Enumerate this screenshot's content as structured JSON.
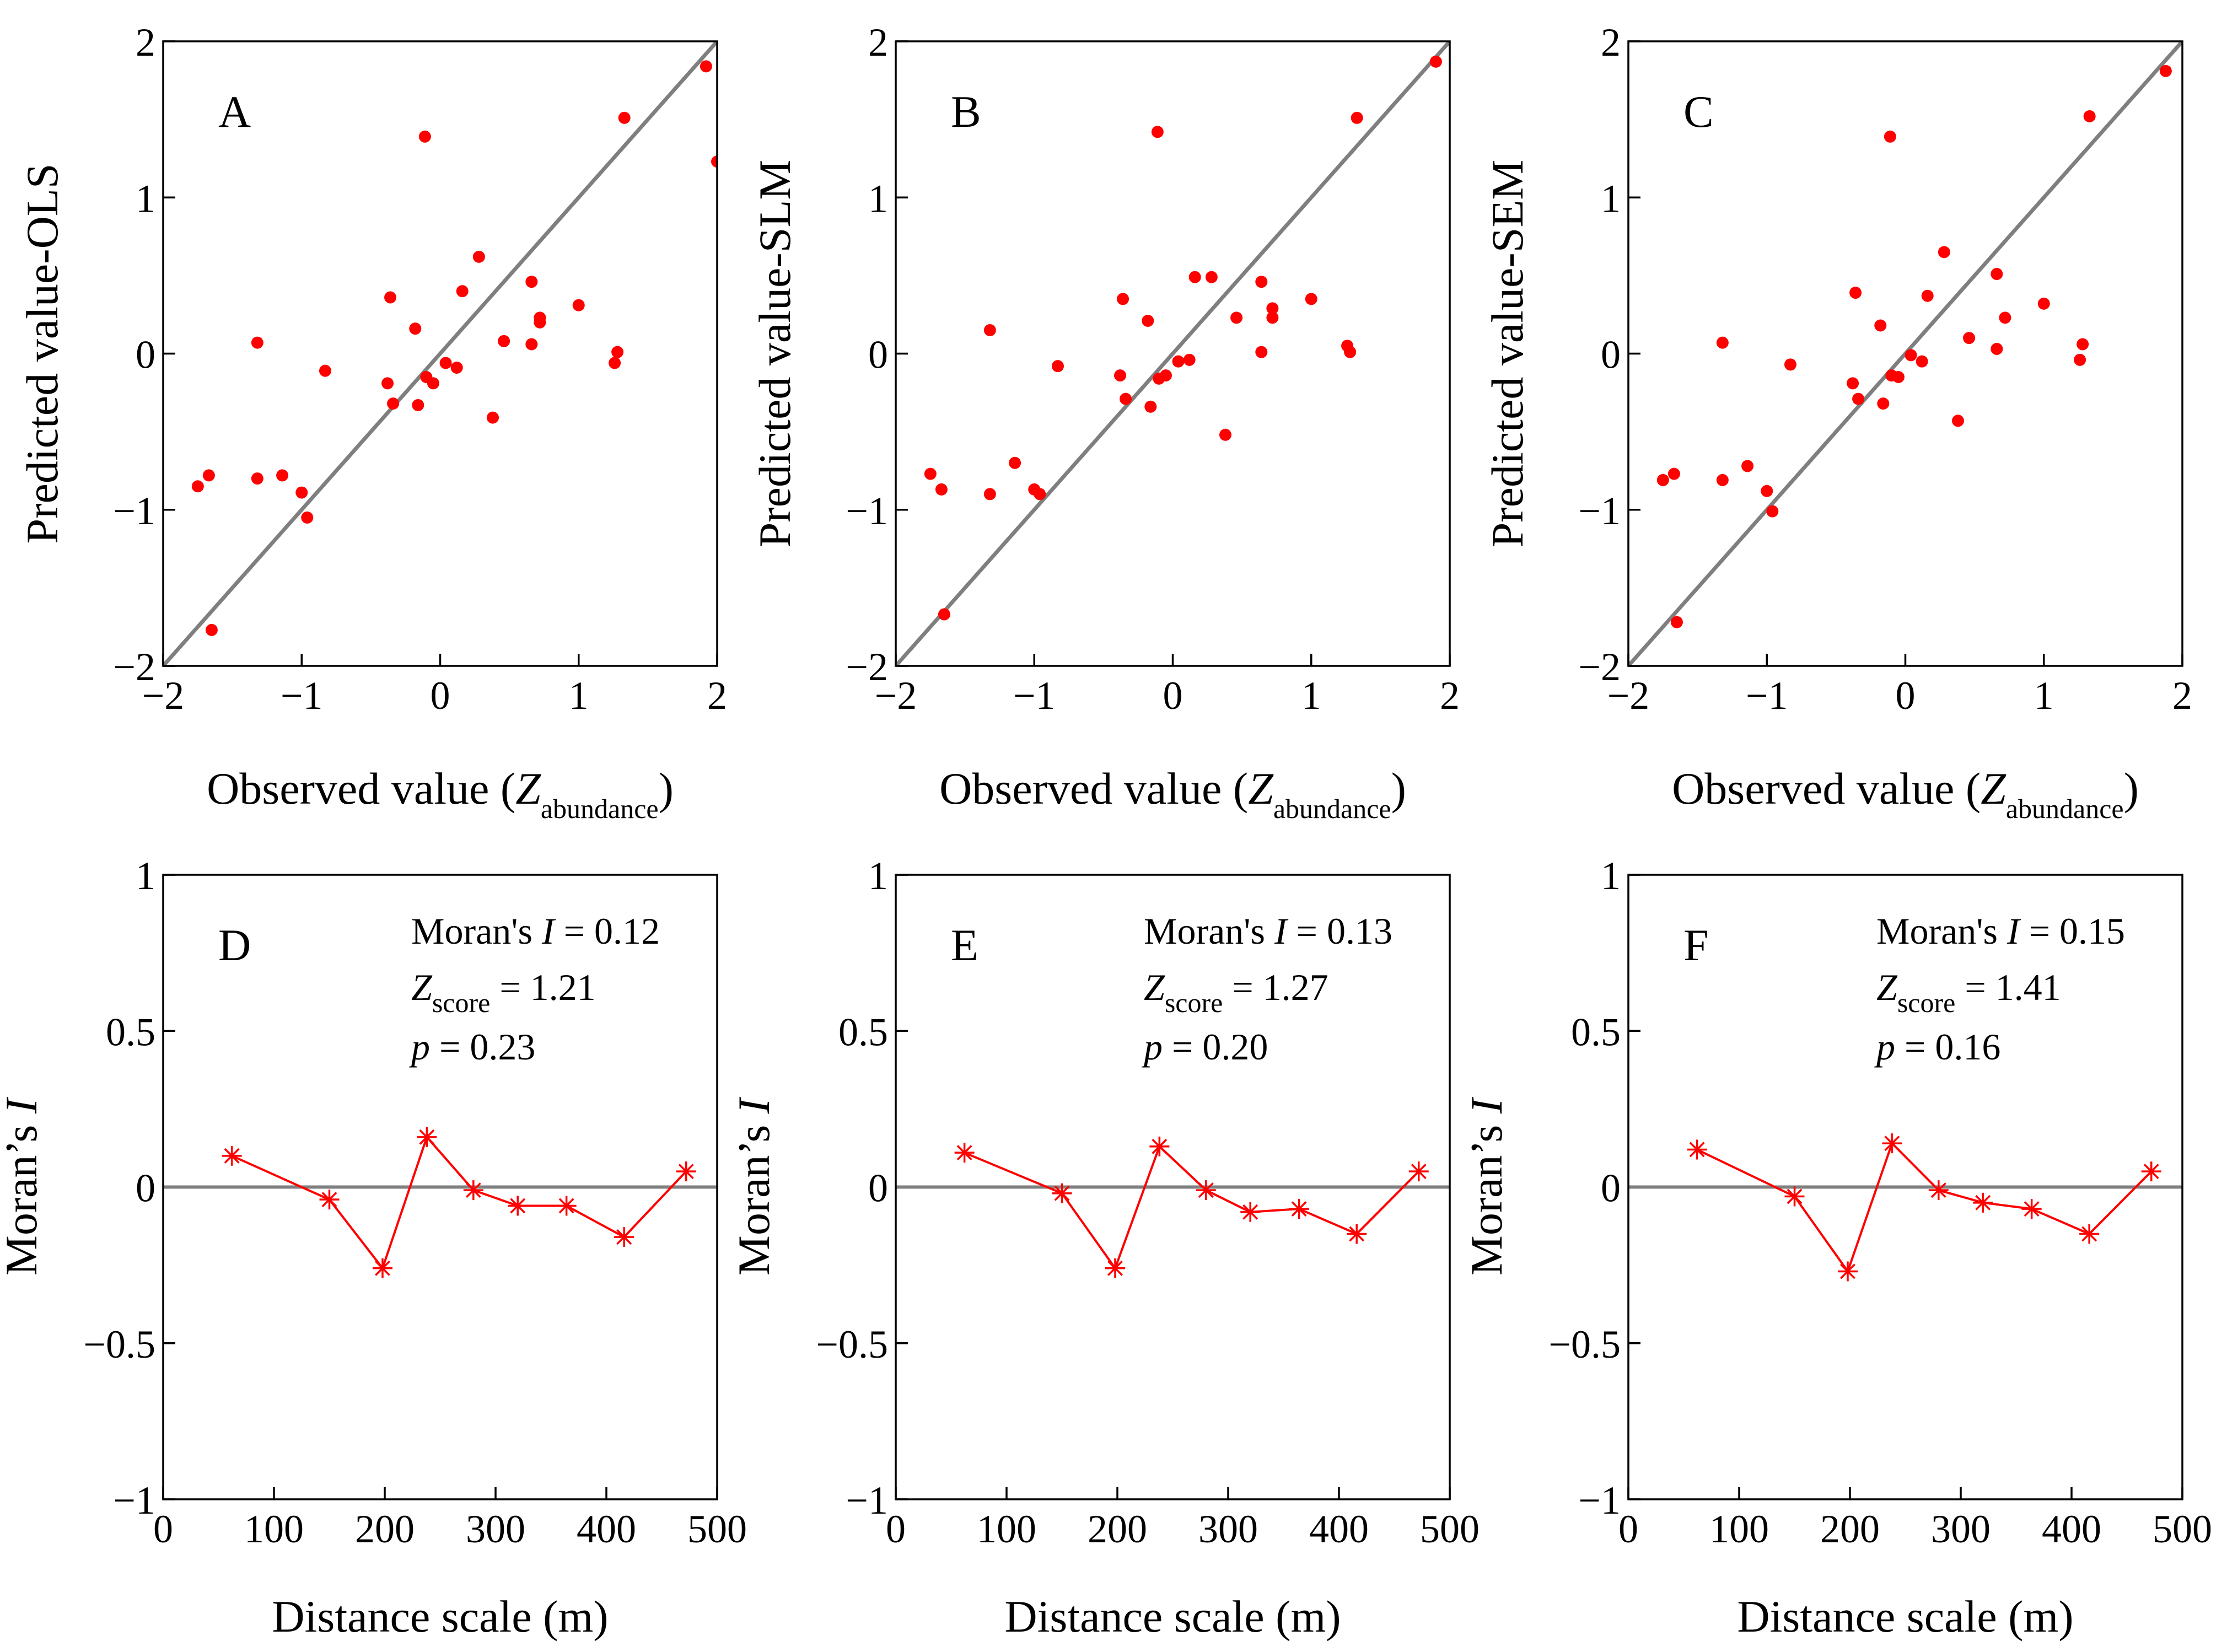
{
  "chart_data": [
    {
      "id": "A",
      "type": "scatter",
      "panel_letter": "A",
      "ylabel": "Predicted value-OLS",
      "xlabel_main": "Observed value (",
      "xlabel_italic": "Z",
      "xlabel_sub": "abundance",
      "xlabel_close": ")",
      "xlim": [
        -2,
        2
      ],
      "ylim": [
        -2,
        2
      ],
      "xticks": [
        {
          "v": -2,
          "label": "−2"
        },
        {
          "v": -1,
          "label": "−1"
        },
        {
          "v": 0,
          "label": "0"
        },
        {
          "v": 1,
          "label": "1"
        },
        {
          "v": 2,
          "label": "2"
        }
      ],
      "yticks": [
        {
          "v": -2,
          "label": "−2"
        },
        {
          "v": -1,
          "label": "−1"
        },
        {
          "v": 0,
          "label": "0"
        },
        {
          "v": 1,
          "label": "1"
        },
        {
          "v": 2,
          "label": "2"
        }
      ],
      "reference_line": "1:1",
      "points": [
        {
          "x": -1.75,
          "y": -0.85
        },
        {
          "x": -1.67,
          "y": -0.78
        },
        {
          "x": -1.65,
          "y": -1.77
        },
        {
          "x": -1.32,
          "y": 0.07
        },
        {
          "x": -1.32,
          "y": -0.8
        },
        {
          "x": -1.14,
          "y": -0.78
        },
        {
          "x": -1.0,
          "y": -0.89
        },
        {
          "x": -0.96,
          "y": -1.05
        },
        {
          "x": -0.83,
          "y": -0.11
        },
        {
          "x": -0.38,
          "y": -0.19
        },
        {
          "x": -0.36,
          "y": 0.36
        },
        {
          "x": -0.34,
          "y": -0.32
        },
        {
          "x": -0.18,
          "y": 0.16
        },
        {
          "x": -0.16,
          "y": -0.33
        },
        {
          "x": -0.11,
          "y": 1.39
        },
        {
          "x": -0.1,
          "y": -0.15
        },
        {
          "x": -0.05,
          "y": -0.19
        },
        {
          "x": 0.04,
          "y": -0.06
        },
        {
          "x": 0.12,
          "y": -0.09
        },
        {
          "x": 0.16,
          "y": 0.4
        },
        {
          "x": 0.28,
          "y": 0.62
        },
        {
          "x": 0.38,
          "y": -0.41
        },
        {
          "x": 0.46,
          "y": 0.08
        },
        {
          "x": 0.66,
          "y": 0.46
        },
        {
          "x": 0.66,
          "y": 0.06
        },
        {
          "x": 0.72,
          "y": 0.23
        },
        {
          "x": 0.72,
          "y": 0.2
        },
        {
          "x": 1.0,
          "y": 0.31
        },
        {
          "x": 1.26,
          "y": -0.06
        },
        {
          "x": 1.28,
          "y": 0.01
        },
        {
          "x": 1.33,
          "y": 1.51
        },
        {
          "x": 1.92,
          "y": 1.84
        },
        {
          "x": 2.0,
          "y": 1.23
        }
      ]
    },
    {
      "id": "B",
      "type": "scatter",
      "panel_letter": "B",
      "ylabel": "Predicted value-SLM",
      "xlabel_main": "Observed value (",
      "xlabel_italic": "Z",
      "xlabel_sub": "abundance",
      "xlabel_close": ")",
      "xlim": [
        -2,
        2
      ],
      "ylim": [
        -2,
        2
      ],
      "xticks": [
        {
          "v": -2,
          "label": "−2"
        },
        {
          "v": -1,
          "label": "−1"
        },
        {
          "v": 0,
          "label": "0"
        },
        {
          "v": 1,
          "label": "1"
        },
        {
          "v": 2,
          "label": "2"
        }
      ],
      "yticks": [
        {
          "v": -2,
          "label": "−2"
        },
        {
          "v": -1,
          "label": "−1"
        },
        {
          "v": 0,
          "label": "0"
        },
        {
          "v": 1,
          "label": "1"
        },
        {
          "v": 2,
          "label": "2"
        }
      ],
      "reference_line": "1:1",
      "points": [
        {
          "x": -1.75,
          "y": -0.77
        },
        {
          "x": -1.67,
          "y": -0.87
        },
        {
          "x": -1.65,
          "y": -1.67
        },
        {
          "x": -1.32,
          "y": 0.15
        },
        {
          "x": -1.32,
          "y": -0.9
        },
        {
          "x": -1.14,
          "y": -0.7
        },
        {
          "x": -1.0,
          "y": -0.87
        },
        {
          "x": -0.96,
          "y": -0.9
        },
        {
          "x": -0.83,
          "y": -0.08
        },
        {
          "x": -0.38,
          "y": -0.14
        },
        {
          "x": -0.36,
          "y": 0.35
        },
        {
          "x": -0.34,
          "y": -0.29
        },
        {
          "x": -0.18,
          "y": 0.21
        },
        {
          "x": -0.16,
          "y": -0.34
        },
        {
          "x": -0.11,
          "y": 1.42
        },
        {
          "x": -0.1,
          "y": -0.16
        },
        {
          "x": -0.05,
          "y": -0.14
        },
        {
          "x": 0.04,
          "y": -0.05
        },
        {
          "x": 0.12,
          "y": -0.04
        },
        {
          "x": 0.16,
          "y": 0.49
        },
        {
          "x": 0.28,
          "y": 0.49
        },
        {
          "x": 0.38,
          "y": -0.52
        },
        {
          "x": 0.46,
          "y": 0.23
        },
        {
          "x": 0.64,
          "y": 0.46
        },
        {
          "x": 0.64,
          "y": 0.01
        },
        {
          "x": 0.72,
          "y": 0.29
        },
        {
          "x": 0.72,
          "y": 0.23
        },
        {
          "x": 1.0,
          "y": 0.35
        },
        {
          "x": 1.26,
          "y": 0.05
        },
        {
          "x": 1.28,
          "y": 0.01
        },
        {
          "x": 1.33,
          "y": 1.51
        },
        {
          "x": 1.9,
          "y": 1.87
        }
      ]
    },
    {
      "id": "C",
      "type": "scatter",
      "panel_letter": "C",
      "ylabel": "Predicted value-SEM",
      "xlabel_main": "Observed value (",
      "xlabel_italic": "Z",
      "xlabel_sub": "abundance",
      "xlabel_close": ")",
      "xlim": [
        -2,
        2
      ],
      "ylim": [
        -2,
        2
      ],
      "xticks": [
        {
          "v": -2,
          "label": "−2"
        },
        {
          "v": -1,
          "label": "−1"
        },
        {
          "v": 0,
          "label": "0"
        },
        {
          "v": 1,
          "label": "1"
        },
        {
          "v": 2,
          "label": "2"
        }
      ],
      "yticks": [
        {
          "v": -2,
          "label": "−2"
        },
        {
          "v": -1,
          "label": "−1"
        },
        {
          "v": 0,
          "label": "0"
        },
        {
          "v": 1,
          "label": "1"
        },
        {
          "v": 2,
          "label": "2"
        }
      ],
      "reference_line": "1:1",
      "points": [
        {
          "x": -1.75,
          "y": -0.81
        },
        {
          "x": -1.67,
          "y": -0.77
        },
        {
          "x": -1.65,
          "y": -1.72
        },
        {
          "x": -1.32,
          "y": 0.07
        },
        {
          "x": -1.32,
          "y": -0.81
        },
        {
          "x": -1.14,
          "y": -0.72
        },
        {
          "x": -1.0,
          "y": -0.88
        },
        {
          "x": -0.96,
          "y": -1.01
        },
        {
          "x": -0.83,
          "y": -0.07
        },
        {
          "x": -0.38,
          "y": -0.19
        },
        {
          "x": -0.36,
          "y": 0.39
        },
        {
          "x": -0.34,
          "y": -0.29
        },
        {
          "x": -0.18,
          "y": 0.18
        },
        {
          "x": -0.16,
          "y": -0.32
        },
        {
          "x": -0.11,
          "y": 1.39
        },
        {
          "x": -0.1,
          "y": -0.14
        },
        {
          "x": -0.05,
          "y": -0.15
        },
        {
          "x": 0.04,
          "y": -0.01
        },
        {
          "x": 0.12,
          "y": -0.05
        },
        {
          "x": 0.16,
          "y": 0.37
        },
        {
          "x": 0.28,
          "y": 0.65
        },
        {
          "x": 0.38,
          "y": -0.43
        },
        {
          "x": 0.46,
          "y": 0.1
        },
        {
          "x": 0.66,
          "y": 0.51
        },
        {
          "x": 0.66,
          "y": 0.03
        },
        {
          "x": 0.72,
          "y": 0.23
        },
        {
          "x": 1.0,
          "y": 0.32
        },
        {
          "x": 1.26,
          "y": -0.04
        },
        {
          "x": 1.28,
          "y": 0.06
        },
        {
          "x": 1.33,
          "y": 1.52
        },
        {
          "x": 1.88,
          "y": 1.81
        }
      ]
    },
    {
      "id": "D",
      "type": "line",
      "panel_letter": "D",
      "ylabel_main": "Moran’s ",
      "ylabel_italic": "I",
      "xlabel": "Distance scale (m)",
      "xlim": [
        0,
        500
      ],
      "ylim": [
        -1,
        1
      ],
      "xticks": [
        {
          "v": 0,
          "label": "0"
        },
        {
          "v": 100,
          "label": "100"
        },
        {
          "v": 200,
          "label": "200"
        },
        {
          "v": 300,
          "label": "300"
        },
        {
          "v": 400,
          "label": "400"
        },
        {
          "v": 500,
          "label": "500"
        }
      ],
      "yticks": [
        {
          "v": -1,
          "label": "−1"
        },
        {
          "v": -0.5,
          "label": "−0.5"
        },
        {
          "v": 0,
          "label": "0"
        },
        {
          "v": 0.5,
          "label": "0.5"
        },
        {
          "v": 1,
          "label": "1"
        }
      ],
      "x": [
        62,
        150,
        198,
        238,
        280,
        320,
        364,
        416,
        472
      ],
      "y": [
        0.1,
        -0.04,
        -0.26,
        0.16,
        -0.01,
        -0.06,
        -0.06,
        -0.16,
        0.05
      ],
      "stats": {
        "moran_label": "Moran's ",
        "moran_italic": "I",
        "moran_value": " = 0.12",
        "z_italic": "Z",
        "z_sub": "score",
        "z_value": " = 1.21",
        "p_italic": "p",
        "p_value": " = 0.23"
      }
    },
    {
      "id": "E",
      "type": "line",
      "panel_letter": "E",
      "ylabel_main": "Moran’s ",
      "ylabel_italic": "I",
      "xlabel": "Distance scale (m)",
      "xlim": [
        0,
        500
      ],
      "ylim": [
        -1,
        1
      ],
      "xticks": [
        {
          "v": 0,
          "label": "0"
        },
        {
          "v": 100,
          "label": "100"
        },
        {
          "v": 200,
          "label": "200"
        },
        {
          "v": 300,
          "label": "300"
        },
        {
          "v": 400,
          "label": "400"
        },
        {
          "v": 500,
          "label": "500"
        }
      ],
      "yticks": [
        {
          "v": -1,
          "label": "−1"
        },
        {
          "v": -0.5,
          "label": "−0.5"
        },
        {
          "v": 0,
          "label": "0"
        },
        {
          "v": 0.5,
          "label": "0.5"
        },
        {
          "v": 1,
          "label": "1"
        }
      ],
      "x": [
        62,
        150,
        198,
        238,
        280,
        320,
        364,
        416,
        472
      ],
      "y": [
        0.11,
        -0.02,
        -0.26,
        0.13,
        -0.01,
        -0.08,
        -0.07,
        -0.15,
        0.05
      ],
      "stats": {
        "moran_label": "Moran's ",
        "moran_italic": "I",
        "moran_value": " = 0.13",
        "z_italic": "Z",
        "z_sub": "score",
        "z_value": " = 1.27",
        "p_italic": "p",
        "p_value": " = 0.20"
      }
    },
    {
      "id": "F",
      "type": "line",
      "panel_letter": "F",
      "ylabel_main": "Moran’s ",
      "ylabel_italic": "I",
      "xlabel": "Distance scale (m)",
      "xlim": [
        0,
        500
      ],
      "ylim": [
        -1,
        1
      ],
      "xticks": [
        {
          "v": 0,
          "label": "0"
        },
        {
          "v": 100,
          "label": "100"
        },
        {
          "v": 200,
          "label": "200"
        },
        {
          "v": 300,
          "label": "300"
        },
        {
          "v": 400,
          "label": "400"
        },
        {
          "v": 500,
          "label": "500"
        }
      ],
      "yticks": [
        {
          "v": -1,
          "label": "−1"
        },
        {
          "v": -0.5,
          "label": "−0.5"
        },
        {
          "v": 0,
          "label": "0"
        },
        {
          "v": 0.5,
          "label": "0.5"
        },
        {
          "v": 1,
          "label": "1"
        }
      ],
      "x": [
        62,
        150,
        198,
        238,
        280,
        320,
        364,
        416,
        472
      ],
      "y": [
        0.12,
        -0.03,
        -0.27,
        0.14,
        -0.01,
        -0.05,
        -0.07,
        -0.15,
        0.05
      ],
      "stats": {
        "moran_label": "Moran's ",
        "moran_italic": "I",
        "moran_value": " = 0.15",
        "z_italic": "Z",
        "z_sub": "score",
        "z_value": " = 1.41",
        "p_italic": "p",
        "p_value": " = 0.16"
      }
    }
  ],
  "colors": {
    "marker": "#ff0000",
    "reference_line": "#7f7f7f",
    "axis": "#000000"
  }
}
